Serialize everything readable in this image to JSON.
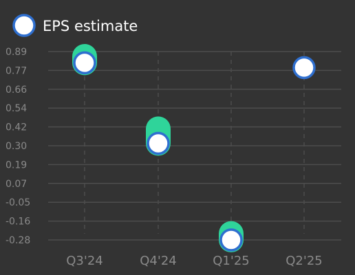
{
  "legend": {
    "label": "EPS estimate",
    "position": "top-left"
  },
  "colors": {
    "background": "#333333",
    "grid": "#4d4d4d",
    "axis_text": "#8a8a8a",
    "estimate_fill": "#ffffff",
    "estimate_stroke": "#2f6fcf",
    "actual_fill": "#2fd49a",
    "legend_text": "#ffffff"
  },
  "chart_data": {
    "type": "scatter",
    "categories": [
      "Q3'24",
      "Q4'24",
      "Q1'25",
      "Q2'25"
    ],
    "y_ticks": [
      "0.89",
      "0.77",
      "0.66",
      "0.54",
      "0.42",
      "0.30",
      "0.19",
      "0.07",
      "-0.05",
      "-0.16",
      "-0.28"
    ],
    "ylim": [
      -0.28,
      0.89
    ],
    "grid": true,
    "series": [
      {
        "name": "EPS estimate",
        "values": [
          0.82,
          0.32,
          -0.28,
          0.79
        ]
      },
      {
        "values": [
          0.86,
          0.41,
          -0.24,
          null
        ]
      }
    ]
  }
}
